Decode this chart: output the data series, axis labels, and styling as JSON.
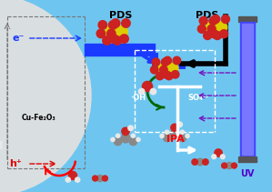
{
  "bg_color_sky": "#6ec6f0",
  "circle_color": "#e0e0e0",
  "pds_label_1": "PDS",
  "pds_label_2": "PDS",
  "uv_label": "UV",
  "ipa_label": "IPA",
  "oh_label": "·OH",
  "so4_label": "SO₄··",
  "cu_label": "Cu-Fe₂O₃",
  "e_label": "e⁻",
  "h_label": "h⁺",
  "blue_bar_color": "#1a3aff",
  "arrow_blue": "#1a3aff",
  "arrow_black": "#000000",
  "arrow_red": "#dd0000",
  "arrow_white": "#ffffff",
  "arrow_purple": "#7700bb",
  "arrow_green": "#006600",
  "dashed_gray": "#777777",
  "sulfur_color": "#ddcc00",
  "oxygen_color": "#cc2222",
  "carbon_color": "#888888",
  "hydrogen_color": "#e8e8e8",
  "uv_dark": "#3333aa",
  "uv_bright": "#4444ff",
  "uv_text": "#5500cc"
}
